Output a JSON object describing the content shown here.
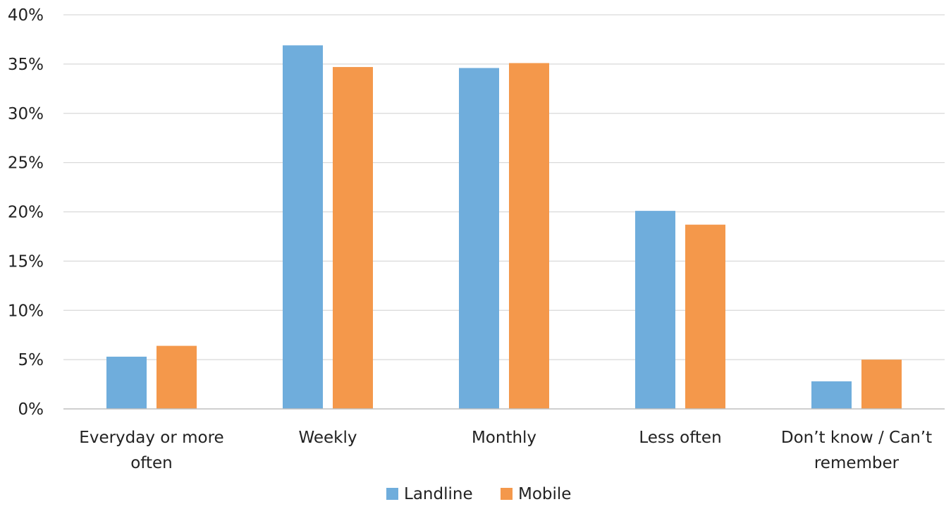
{
  "colors": {
    "landline": "#6FADDC",
    "mobile": "#F4984B",
    "grid": "#D9D9D9",
    "axis": "#BFBFBF"
  },
  "chart_data": {
    "type": "bar",
    "categories": [
      [
        "Everyday or more",
        "often"
      ],
      [
        "Weekly"
      ],
      [
        "Monthly"
      ],
      [
        "Less often"
      ],
      [
        "Don’t know / Can’t",
        "remember"
      ]
    ],
    "series": [
      {
        "name": "Landline",
        "color": "#6FADDC",
        "values": [
          5.3,
          36.9,
          34.6,
          20.1,
          2.8
        ]
      },
      {
        "name": "Mobile",
        "color": "#F4984B",
        "values": [
          6.4,
          34.7,
          35.1,
          18.7,
          5.0
        ]
      }
    ],
    "title": "",
    "xlabel": "",
    "ylabel": "",
    "ylim": [
      0,
      40
    ],
    "yticks": [
      "0%",
      "5%",
      "10%",
      "15%",
      "20%",
      "25%",
      "30%",
      "35%",
      "40%"
    ],
    "grid": true,
    "legend_position": "bottom-center"
  }
}
